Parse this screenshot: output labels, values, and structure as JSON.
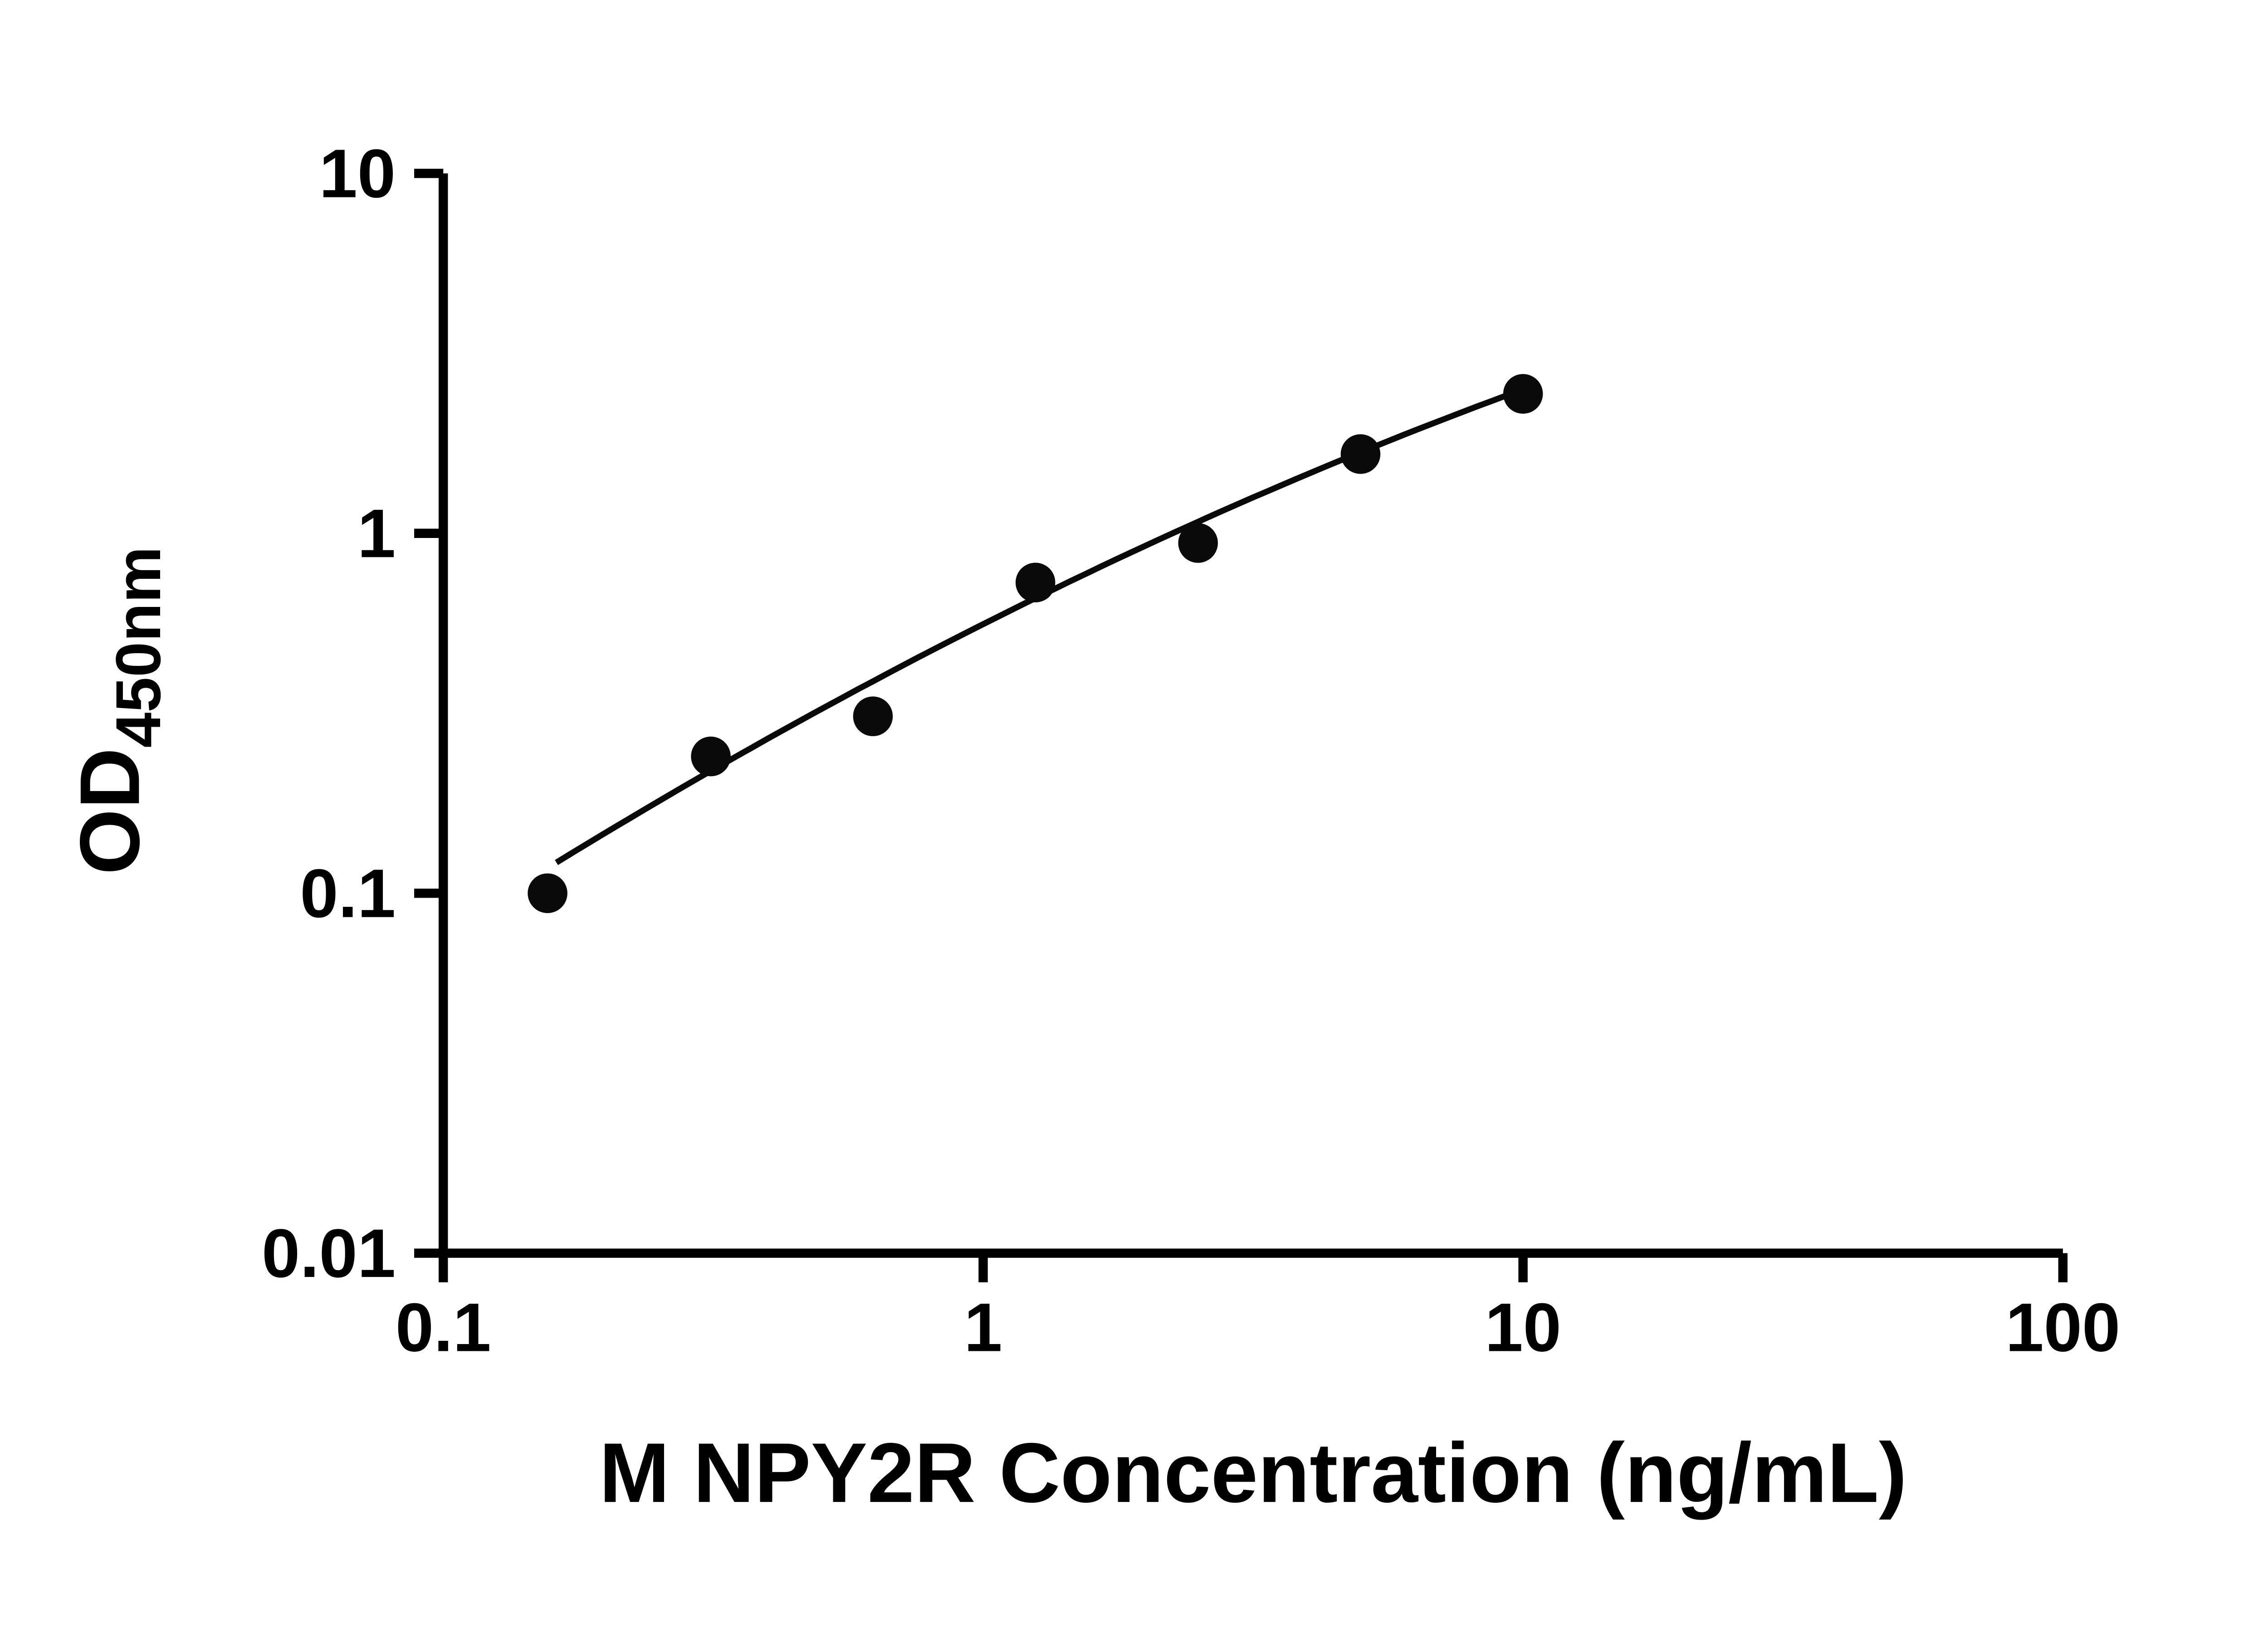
{
  "chart_data": {
    "type": "scatter",
    "title": "",
    "xlabel": "M NPY2R Concentration (ng/mL)",
    "ylabel": "OD450nm",
    "ylabel_main": "OD",
    "ylabel_sub": "450nm",
    "x_scale": "log",
    "y_scale": "log",
    "xlim": [
      0.1,
      100
    ],
    "ylim": [
      0.01,
      10
    ],
    "x_ticks": [
      "0.1",
      "1",
      "10",
      "100"
    ],
    "x_tick_values": [
      0.1,
      1,
      10,
      100
    ],
    "y_ticks": [
      "0.01",
      "0.1",
      "1",
      "10"
    ],
    "y_tick_values": [
      0.01,
      0.1,
      1,
      10
    ],
    "grid": false,
    "legend": null,
    "marker_color": "#0a0a0a",
    "line_color": "#0a0a0a",
    "points": [
      {
        "x": 0.156,
        "y": 0.1
      },
      {
        "x": 0.313,
        "y": 0.24
      },
      {
        "x": 0.625,
        "y": 0.31
      },
      {
        "x": 1.25,
        "y": 0.73
      },
      {
        "x": 2.5,
        "y": 0.94
      },
      {
        "x": 5,
        "y": 1.66
      },
      {
        "x": 10,
        "y": 2.44
      }
    ],
    "trend": {
      "type": "quadratic_loglog",
      "coeffs": {
        "a": -0.2524,
        "b": 0.756,
        "c": -0.1037
      },
      "x_start": 0.162,
      "x_end": 10
    }
  }
}
